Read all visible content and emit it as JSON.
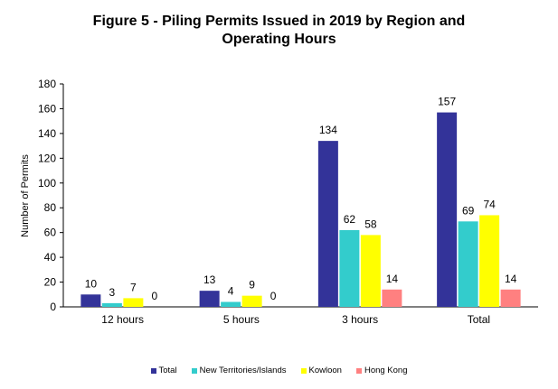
{
  "chart_data": {
    "type": "bar",
    "title": "Figure 5 - Piling Permits Issued in 2019 by Region and Operating Hours",
    "title_lines": [
      "Figure 5 - Piling Permits Issued in 2019 by Region and",
      "Operating Hours"
    ],
    "xlabel": "",
    "ylabel": "Number of Permits",
    "ylim": [
      0,
      180
    ],
    "yticks": [
      "0",
      "20",
      "40",
      "60",
      "80",
      "100",
      "120",
      "140",
      "160",
      "180"
    ],
    "categories": [
      "12 hours",
      "5 hours",
      "3 hours",
      "Total"
    ],
    "series": [
      {
        "name": "Total",
        "color": "#333399",
        "values": [
          10,
          13,
          134,
          157
        ]
      },
      {
        "name": "New Territories/Islands",
        "color": "#33CCCC",
        "values": [
          3,
          4,
          62,
          69
        ]
      },
      {
        "name": "Kowloon",
        "color": "#FFFF00",
        "values": [
          7,
          9,
          58,
          74
        ]
      },
      {
        "name": "Hong Kong",
        "color": "#FF8080",
        "values": [
          0,
          0,
          14,
          14
        ]
      }
    ],
    "grid": false,
    "legend_position": "bottom"
  }
}
